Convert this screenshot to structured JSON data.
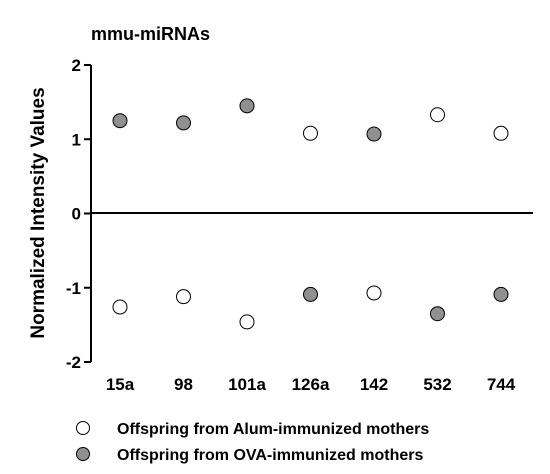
{
  "chart_data": {
    "type": "scatter",
    "title": "mmu-miRNAs",
    "ylabel": "Normalized Intensity Values",
    "xlabel": "",
    "ylim": [
      -2,
      2
    ],
    "yticks": [
      "2",
      "1",
      "0",
      "-1",
      "-2"
    ],
    "zero_line": true,
    "grid": false,
    "legend_position": "bottom",
    "categories": [
      "15a",
      "98",
      "101a",
      "126a",
      "142",
      "532",
      "744"
    ],
    "series": [
      {
        "name": "Offspring from Alum-immunized mothers",
        "marker": "open-circle",
        "color": "#ffffff",
        "values": [
          -1.26,
          -1.12,
          -1.46,
          1.08,
          -1.07,
          1.33,
          1.08
        ]
      },
      {
        "name": "Offspring from OVA-immunized mothers",
        "marker": "filled-circle",
        "color": "#909090",
        "values": [
          1.25,
          1.22,
          1.45,
          -1.09,
          1.07,
          -1.35,
          -1.09
        ]
      }
    ]
  }
}
